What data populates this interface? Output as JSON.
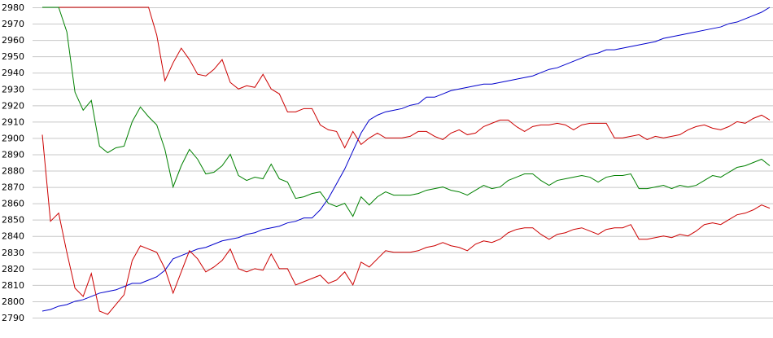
{
  "chart_data": {
    "type": "line",
    "ylim": [
      2790,
      2980
    ],
    "yticks": [
      2790,
      2800,
      2810,
      2820,
      2830,
      2840,
      2850,
      2860,
      2870,
      2880,
      2890,
      2900,
      2910,
      2920,
      2930,
      2940,
      2950,
      2960,
      2970,
      2980
    ],
    "grid": true,
    "series": [
      {
        "color": "#0000cc",
        "values": [
          2794,
          2795,
          2797,
          2798,
          2800,
          2801,
          2803,
          2805,
          2806,
          2807,
          2809,
          2811,
          2811,
          2813,
          2815,
          2819,
          2826,
          2828,
          2830,
          2832,
          2833,
          2835,
          2837,
          2838,
          2839,
          2841,
          2842,
          2844,
          2845,
          2846,
          2848,
          2849,
          2851,
          2851,
          2856,
          2863,
          2872,
          2881,
          2892,
          2903,
          2911,
          2914,
          2916,
          2917,
          2918,
          2920,
          2921,
          2925,
          2925,
          2927,
          2929,
          2930,
          2931,
          2932,
          2933,
          2933,
          2934,
          2935,
          2936,
          2937,
          2938,
          2940,
          2942,
          2943,
          2945,
          2947,
          2949,
          2951,
          2952,
          2954,
          2954,
          2955,
          2956,
          2957,
          2958,
          2959,
          2961,
          2962,
          2963,
          2964,
          2965,
          2966,
          2967,
          2968,
          2970,
          2971,
          2973,
          2975,
          2977,
          2980
        ]
      },
      {
        "color": "#cc0000",
        "values": [
          2980,
          2980,
          2980,
          2980,
          2980,
          2980,
          2980,
          2980,
          2980,
          2980,
          2980,
          2980,
          2980,
          2980,
          2963,
          2935,
          2946,
          2955,
          2948,
          2939,
          2938,
          2942,
          2948,
          2934,
          2930,
          2932,
          2931,
          2939,
          2930,
          2927,
          2916,
          2916,
          2918,
          2918,
          2908,
          2905,
          2904,
          2894,
          2904,
          2896,
          2900,
          2903,
          2900,
          2900,
          2900,
          2901,
          2904,
          2904,
          2901,
          2899,
          2903,
          2905,
          2902,
          2903,
          2907,
          2909,
          2911,
          2911,
          2907,
          2904,
          2907,
          2908,
          2908,
          2909,
          2908,
          2905,
          2908,
          2909,
          2909,
          2909,
          2900,
          2900,
          2901,
          2902,
          2899,
          2901,
          2900,
          2901,
          2902,
          2905,
          2907,
          2908,
          2906,
          2905,
          2907,
          2910,
          2909,
          2912,
          2914,
          2911
        ]
      },
      {
        "color": "#008000",
        "values": [
          2980,
          2980,
          2980,
          2965,
          2928,
          2917,
          2923,
          2895,
          2891,
          2894,
          2895,
          2910,
          2919,
          2913,
          2908,
          2893,
          2870,
          2883,
          2893,
          2887,
          2878,
          2879,
          2883,
          2890,
          2877,
          2874,
          2876,
          2875,
          2884,
          2875,
          2873,
          2863,
          2864,
          2866,
          2867,
          2860,
          2858,
          2860,
          2852,
          2864,
          2859,
          2864,
          2867,
          2865,
          2865,
          2865,
          2866,
          2868,
          2869,
          2870,
          2868,
          2867,
          2865,
          2868,
          2871,
          2869,
          2870,
          2874,
          2876,
          2878,
          2878,
          2874,
          2871,
          2874,
          2875,
          2876,
          2877,
          2876,
          2873,
          2876,
          2877,
          2877,
          2878,
          2869,
          2869,
          2870,
          2871,
          2869,
          2871,
          2870,
          2871,
          2874,
          2877,
          2876,
          2879,
          2882,
          2883,
          2885,
          2887,
          2883
        ]
      },
      {
        "color": "#cc0000",
        "values": [
          2902,
          2849,
          2854,
          2830,
          2808,
          2803,
          2817,
          2794,
          2792,
          2798,
          2804,
          2825,
          2834,
          2832,
          2830,
          2820,
          2805,
          2818,
          2831,
          2826,
          2818,
          2821,
          2825,
          2832,
          2820,
          2818,
          2820,
          2819,
          2829,
          2820,
          2820,
          2810,
          2812,
          2814,
          2816,
          2811,
          2813,
          2818,
          2810,
          2824,
          2821,
          2826,
          2831,
          2830,
          2830,
          2830,
          2831,
          2833,
          2834,
          2836,
          2834,
          2833,
          2831,
          2835,
          2837,
          2836,
          2838,
          2842,
          2844,
          2845,
          2845,
          2841,
          2838,
          2841,
          2842,
          2844,
          2845,
          2843,
          2841,
          2844,
          2845,
          2845,
          2847,
          2838,
          2838,
          2839,
          2840,
          2839,
          2841,
          2840,
          2843,
          2847,
          2848,
          2847,
          2850,
          2853,
          2854,
          2856,
          2859,
          2857
        ]
      }
    ]
  }
}
